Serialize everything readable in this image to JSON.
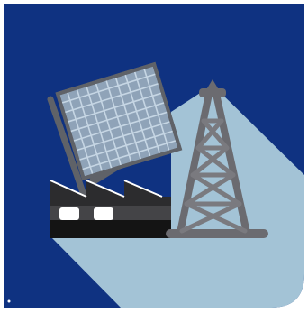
{
  "illustration": {
    "subject": "energy-industry-icon",
    "elements": [
      "solar-panel-icon",
      "factory-icon",
      "oil-derrick-icon"
    ]
  },
  "colors": {
    "background": "#0f3281",
    "shadow": "#a3c3d6",
    "panel_fill": "#8fa3b8",
    "panel_grid": "#c6d6e4",
    "panel_frame": "#5f6268",
    "factory_dark": "#2c2c2e",
    "factory_base": "#141414",
    "factory_mid": "#444447",
    "window": "#ffffff",
    "derrick_steel": "#6b6b70",
    "derrick_brace": "#7a7a7f"
  }
}
